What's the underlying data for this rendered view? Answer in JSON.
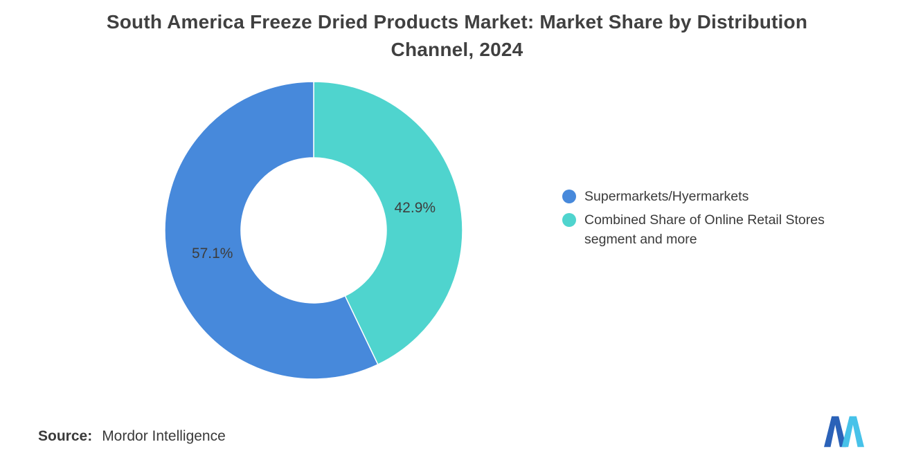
{
  "title": "South America Freeze Dried Products Market: Market Share by Distribution Channel, 2024",
  "chart_data": {
    "type": "pie",
    "subtype": "donut",
    "title": "South America Freeze Dried Products Market: Market Share by Distribution Channel, 2024",
    "labels": [
      "Supermarkets/Hyermarkets",
      "Combined Share of Online Retail Stores segment and more"
    ],
    "values": [
      57.1,
      42.9
    ],
    "value_labels": [
      "57.1%",
      "42.9%"
    ],
    "colors": [
      "#4789DB",
      "#4FD4CE"
    ],
    "label_color": "#3d3d3d",
    "draw_order": [
      1,
      0
    ],
    "start_angle_deg": 0,
    "direction": "clockwise",
    "inner_radius_ratio": 0.49,
    "legend_position": "right"
  },
  "source": {
    "label": "Source:",
    "value": "Mordor Intelligence"
  },
  "logo": {
    "name": "mordor-intelligence-logo",
    "colors": [
      "#2B62B8",
      "#47C2E9"
    ]
  }
}
